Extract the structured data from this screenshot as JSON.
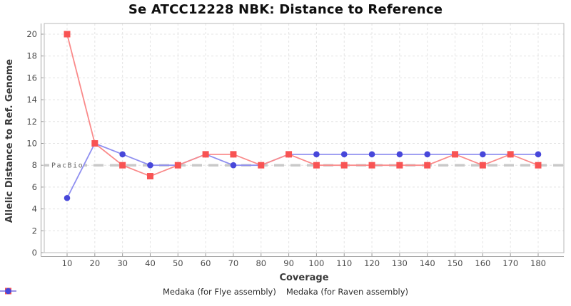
{
  "chart_data": {
    "type": "line",
    "title": "Se ATCC12228 NBK: Distance to Reference",
    "xlabel": "Coverage",
    "ylabel": "Allelic Distance to Ref. Genome",
    "x": [
      10,
      20,
      30,
      40,
      50,
      60,
      70,
      80,
      90,
      100,
      110,
      120,
      130,
      140,
      150,
      160,
      170,
      180
    ],
    "series": [
      {
        "name": "Medaka (for Flye assembly)",
        "marker": "square",
        "marker_color": "#f85353",
        "line_color": "#fa8a8a",
        "values": [
          20,
          10,
          8,
          7,
          8,
          9,
          9,
          8,
          9,
          8,
          8,
          8,
          8,
          8,
          9,
          8,
          9,
          8
        ]
      },
      {
        "name": "Medaka (for Raven assembly)",
        "marker": "circle",
        "marker_color": "#4747da",
        "line_color": "#8f8ff0",
        "values": [
          5,
          10,
          9,
          8,
          8,
          9,
          8,
          8,
          9,
          9,
          9,
          9,
          9,
          9,
          9,
          9,
          9,
          9
        ]
      }
    ],
    "reference_line": {
      "label": "PacBio",
      "value": 8,
      "color": "#c9c9c9"
    },
    "ylim": [
      0,
      20
    ],
    "yticks": [
      0,
      2,
      4,
      6,
      8,
      10,
      12,
      14,
      16,
      18,
      20
    ],
    "grid": true,
    "legend_position": "bottom"
  },
  "colors": {
    "grid": "#e4e4e4",
    "plot_border": "#b8b8b8",
    "axis_line": "#a6a6a6",
    "tick_mark": "#999999"
  }
}
